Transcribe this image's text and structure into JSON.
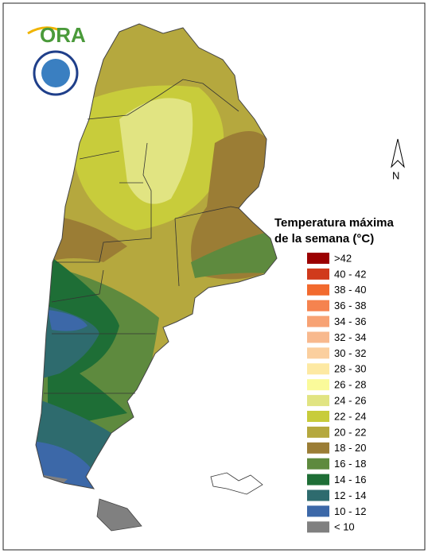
{
  "logo": {
    "text": "ORA"
  },
  "compass": {
    "label": "N"
  },
  "legend": {
    "title": [
      "Temperatura máxima",
      "de la semana (°C)"
    ],
    "items": [
      {
        "label": ">42",
        "color": "#9b0000"
      },
      {
        "label": "40 - 42",
        "color": "#d03a1c"
      },
      {
        "label": "38 - 40",
        "color": "#f26a2e"
      },
      {
        "label": "36 - 38",
        "color": "#f5834f"
      },
      {
        "label": "34 - 36",
        "color": "#f7a274"
      },
      {
        "label": "32 - 34",
        "color": "#f8b98e"
      },
      {
        "label": "30 - 32",
        "color": "#fbcf9e"
      },
      {
        "label": "28 - 30",
        "color": "#fde9a3"
      },
      {
        "label": "26 - 28",
        "color": "#fafa9a"
      },
      {
        "label": "24 - 26",
        "color": "#e1e482"
      },
      {
        "label": "22 - 24",
        "color": "#c8cc3b"
      },
      {
        "label": "20 - 22",
        "color": "#b5a83e"
      },
      {
        "label": "18 - 20",
        "color": "#9b7d35"
      },
      {
        "label": "16 - 18",
        "color": "#5e8a3e"
      },
      {
        "label": "14 - 16",
        "color": "#1e6e36"
      },
      {
        "label": "12 - 14",
        "color": "#2e6b6e"
      },
      {
        "label": "10 - 12",
        "color": "#3c68a8"
      },
      {
        "label": "< 10",
        "color": "#808080"
      }
    ]
  }
}
